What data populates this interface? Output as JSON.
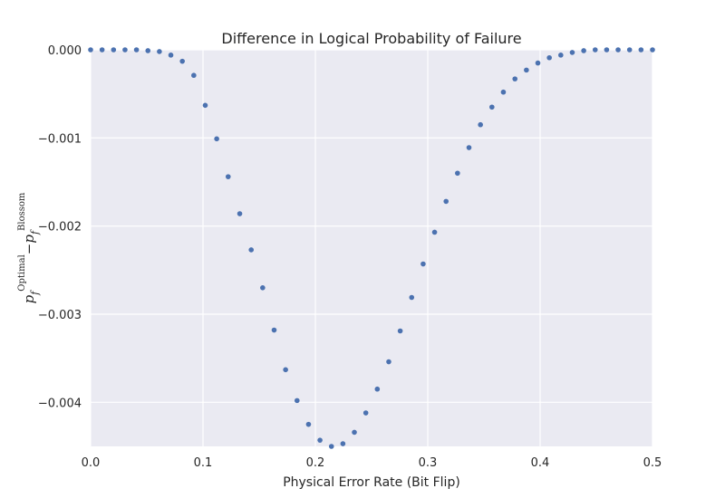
{
  "chart_data": {
    "type": "scatter",
    "title": "Difference in Logical Probability of Failure",
    "xlabel": "Physical Error Rate (Bit Flip)",
    "ylabel": {
      "base": "p",
      "sub": "f",
      "sup_left": "Optimal",
      "minus": "−",
      "sup_right": "Blossom"
    },
    "xlim": [
      0.0,
      0.5
    ],
    "ylim": [
      -0.0045,
      0.0
    ],
    "grid": true,
    "xticks": [
      0.0,
      0.1,
      0.2,
      0.3,
      0.4,
      0.5
    ],
    "xtick_labels": [
      "0.0",
      "0.1",
      "0.2",
      "0.3",
      "0.4",
      "0.5"
    ],
    "yticks": [
      0.0,
      -0.001,
      -0.002,
      -0.003,
      -0.004
    ],
    "ytick_labels": [
      "0.000",
      "−0.001",
      "−0.002",
      "−0.003",
      "−0.004"
    ],
    "marker_color": "#4c72b0",
    "background_color": "#eaeaf2",
    "points": [
      {
        "x": 0.0,
        "y": 0.0
      },
      {
        "x": 0.0102,
        "y": 0.0
      },
      {
        "x": 0.0204,
        "y": 0.0
      },
      {
        "x": 0.0306,
        "y": 0.0
      },
      {
        "x": 0.0408,
        "y": 0.0
      },
      {
        "x": 0.051,
        "y": -1e-05
      },
      {
        "x": 0.0612,
        "y": -2e-05
      },
      {
        "x": 0.0714,
        "y": -6e-05
      },
      {
        "x": 0.0816,
        "y": -0.00013
      },
      {
        "x": 0.0918,
        "y": -0.00029
      },
      {
        "x": 0.102,
        "y": -0.00063
      },
      {
        "x": 0.1122,
        "y": -0.00101
      },
      {
        "x": 0.1224,
        "y": -0.00144
      },
      {
        "x": 0.1327,
        "y": -0.00186
      },
      {
        "x": 0.1429,
        "y": -0.00227
      },
      {
        "x": 0.1531,
        "y": -0.0027
      },
      {
        "x": 0.1633,
        "y": -0.00318
      },
      {
        "x": 0.1735,
        "y": -0.00363
      },
      {
        "x": 0.1837,
        "y": -0.00398
      },
      {
        "x": 0.1939,
        "y": -0.00425
      },
      {
        "x": 0.2041,
        "y": -0.00443
      },
      {
        "x": 0.2143,
        "y": -0.0045
      },
      {
        "x": 0.2245,
        "y": -0.00447
      },
      {
        "x": 0.2347,
        "y": -0.00434
      },
      {
        "x": 0.2449,
        "y": -0.00412
      },
      {
        "x": 0.2551,
        "y": -0.00385
      },
      {
        "x": 0.2653,
        "y": -0.00354
      },
      {
        "x": 0.2755,
        "y": -0.00319
      },
      {
        "x": 0.2857,
        "y": -0.00281
      },
      {
        "x": 0.2959,
        "y": -0.00243
      },
      {
        "x": 0.3061,
        "y": -0.00207
      },
      {
        "x": 0.3163,
        "y": -0.00172
      },
      {
        "x": 0.3265,
        "y": -0.0014
      },
      {
        "x": 0.3367,
        "y": -0.00111
      },
      {
        "x": 0.3469,
        "y": -0.00085
      },
      {
        "x": 0.3571,
        "y": -0.00065
      },
      {
        "x": 0.3673,
        "y": -0.00048
      },
      {
        "x": 0.3776,
        "y": -0.00033
      },
      {
        "x": 0.3878,
        "y": -0.00023
      },
      {
        "x": 0.398,
        "y": -0.00015
      },
      {
        "x": 0.4082,
        "y": -9e-05
      },
      {
        "x": 0.4184,
        "y": -6e-05
      },
      {
        "x": 0.4286,
        "y": -3e-05
      },
      {
        "x": 0.4388,
        "y": -1e-05
      },
      {
        "x": 0.449,
        "y": 0.0
      },
      {
        "x": 0.4592,
        "y": 0.0
      },
      {
        "x": 0.4694,
        "y": 0.0
      },
      {
        "x": 0.4796,
        "y": 0.0
      },
      {
        "x": 0.4898,
        "y": 0.0
      },
      {
        "x": 0.5,
        "y": 0.0
      }
    ]
  }
}
